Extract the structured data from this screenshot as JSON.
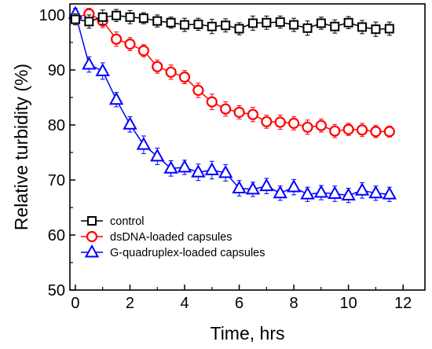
{
  "chart_data": {
    "type": "line",
    "title": "",
    "xlabel": "Time, hrs",
    "ylabel": "Relative turbidity (%)",
    "xlim": [
      -0.2,
      12.8
    ],
    "ylim": [
      50,
      102
    ],
    "xticks": [
      0,
      2,
      4,
      6,
      8,
      10,
      12
    ],
    "yticks": [
      50,
      60,
      70,
      80,
      90,
      100
    ],
    "grid": false,
    "legend_position": "bottom-left",
    "series": [
      {
        "name": "control",
        "color": "#000000",
        "marker": "square",
        "x": [
          0,
          0.5,
          1,
          1.5,
          2,
          2.5,
          3,
          3.5,
          4,
          4.5,
          5,
          5.5,
          6,
          6.5,
          7,
          7.5,
          8,
          8.5,
          9,
          9.5,
          10,
          10.5,
          11,
          11.5
        ],
        "y": [
          99.2,
          98.8,
          99.6,
          99.9,
          99.6,
          99.4,
          98.9,
          98.6,
          98.2,
          98.3,
          97.9,
          98.1,
          97.5,
          98.5,
          98.6,
          98.7,
          98.2,
          97.6,
          98.5,
          97.9,
          98.6,
          97.8,
          97.4,
          97.5
        ],
        "err": [
          1.0,
          1.2,
          1.3,
          1.1,
          1.2,
          1.0,
          1.1,
          1.0,
          1.2,
          1.1,
          1.3,
          1.2,
          1.1,
          1.3,
          1.2,
          1.1,
          1.2,
          1.3,
          1.1,
          1.2,
          1.1,
          1.2,
          1.3,
          1.2
        ]
      },
      {
        "name": "dsDNA-loaded capsules",
        "color": "#ff0000",
        "marker": "circle",
        "x": [
          0,
          0.5,
          1,
          1.5,
          2,
          2.5,
          3,
          3.5,
          4,
          4.5,
          5,
          5.5,
          6,
          6.5,
          7,
          7.5,
          8,
          8.5,
          9,
          9.5,
          10,
          10.5,
          11,
          11.5
        ],
        "y": [
          99.5,
          100.2,
          98.9,
          95.6,
          94.7,
          93.5,
          90.6,
          89.6,
          88.7,
          86.3,
          84.2,
          82.9,
          82.3,
          81.9,
          80.6,
          80.5,
          80.3,
          79.6,
          79.9,
          78.9,
          79.2,
          79.1,
          78.8,
          78.8
        ],
        "err": [
          1.0,
          1.0,
          1.2,
          1.3,
          1.2,
          1.1,
          1.2,
          1.3,
          1.2,
          1.3,
          1.4,
          1.3,
          1.2,
          1.3,
          1.2,
          1.3,
          1.2,
          1.3,
          1.2,
          1.2,
          1.1,
          1.2,
          1.1,
          1.0
        ]
      },
      {
        "name": "G-quadruplex-loaded capsules",
        "color": "#0000ff",
        "marker": "triangle",
        "x": [
          0,
          0.5,
          1,
          1.5,
          2,
          2.5,
          3,
          3.5,
          4,
          4.5,
          5,
          5.5,
          6,
          6.5,
          7,
          7.5,
          8,
          8.5,
          9,
          9.5,
          10,
          10.5,
          11,
          11.5
        ],
        "y": [
          100.2,
          91.0,
          89.8,
          84.6,
          80.1,
          76.4,
          74.3,
          72.1,
          72.3,
          71.4,
          71.8,
          71.3,
          68.5,
          68.3,
          68.9,
          67.6,
          68.7,
          67.4,
          67.7,
          67.5,
          67.2,
          68.1,
          67.6,
          67.4
        ],
        "err": [
          1.0,
          1.4,
          1.5,
          1.3,
          1.4,
          1.6,
          1.5,
          1.4,
          1.3,
          1.5,
          1.6,
          1.5,
          1.4,
          1.3,
          1.4,
          1.3,
          1.4,
          1.3,
          1.3,
          1.4,
          1.3,
          1.4,
          1.3,
          1.3
        ]
      }
    ]
  }
}
